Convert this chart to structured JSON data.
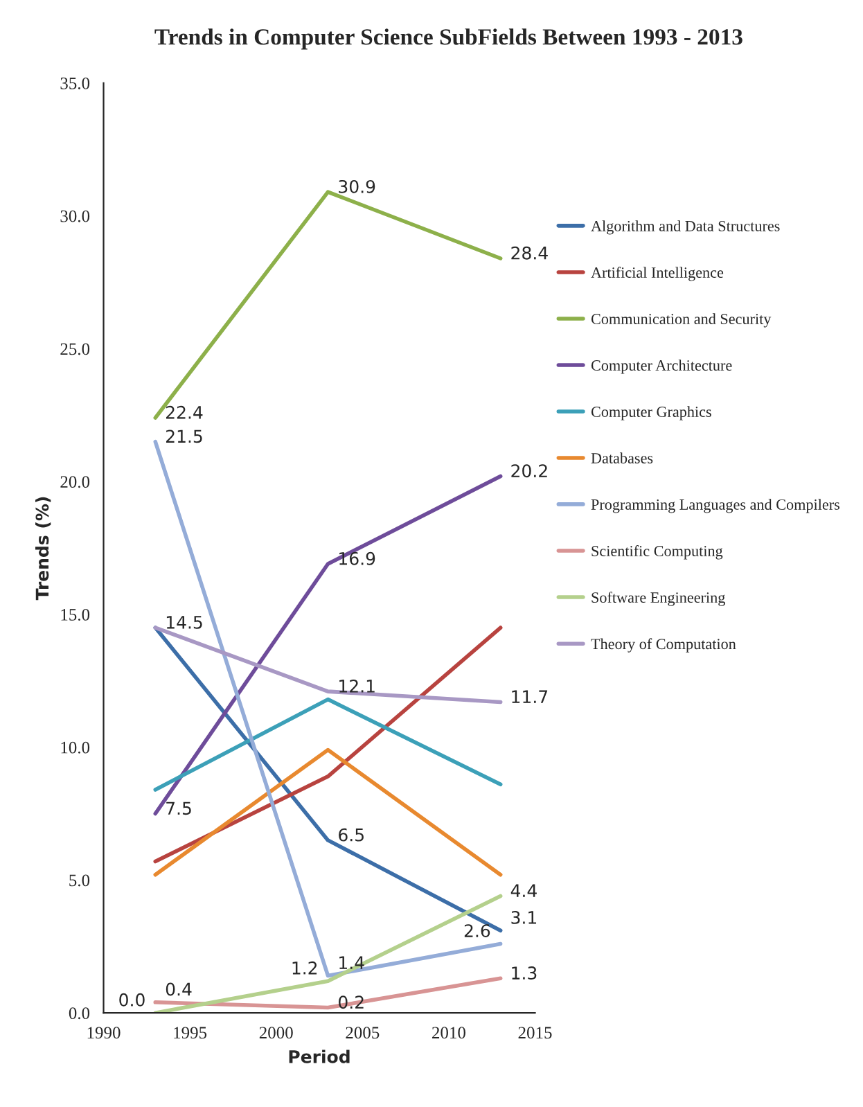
{
  "chart_data": {
    "type": "line",
    "title": "Trends in Computer Science SubFields Between 1993 - 2013",
    "xlabel": "Period",
    "ylabel": "Trends (%)",
    "x": [
      1993,
      2003,
      2013
    ],
    "xlim": [
      1990,
      2015
    ],
    "xticks": [
      1990,
      1995,
      2000,
      2005,
      2010,
      2015
    ],
    "ylim": [
      0,
      35
    ],
    "yticks": [
      {
        "value": 0,
        "label": "0.0"
      },
      {
        "value": 5,
        "label": "5.0"
      },
      {
        "value": 10,
        "label": "10.0"
      },
      {
        "value": 15,
        "label": "15.0"
      },
      {
        "value": 20,
        "label": "20.0"
      },
      {
        "value": 25,
        "label": "25.0"
      },
      {
        "value": 30,
        "label": "30.0"
      },
      {
        "value": 35,
        "label": "35.0"
      }
    ],
    "grid": false,
    "legend": "right",
    "marker": "none",
    "line_style": "solid",
    "series": [
      {
        "name": "Algorithm and Data Structures",
        "color": "#3c6ea8",
        "values": [
          14.5,
          6.5,
          3.1
        ],
        "value_labels": [
          null,
          "6.5",
          "3.1"
        ]
      },
      {
        "name": "Artificial Intelligence",
        "color": "#b8433f",
        "values": [
          5.7,
          8.9,
          14.5
        ],
        "value_labels": [
          null,
          null,
          null
        ]
      },
      {
        "name": "Communication and Security",
        "color": "#8db04a",
        "values": [
          22.4,
          30.9,
          28.4
        ],
        "value_labels": [
          "22.4",
          "30.9",
          "28.4"
        ]
      },
      {
        "name": "Computer Architecture",
        "color": "#6e4c9a",
        "values": [
          7.5,
          16.9,
          20.2
        ],
        "value_labels": [
          "7.5",
          "16.9",
          "20.2"
        ]
      },
      {
        "name": "Computer Graphics",
        "color": "#3ca0b8",
        "values": [
          8.4,
          11.8,
          8.6
        ],
        "value_labels": [
          null,
          null,
          null
        ]
      },
      {
        "name": "Databases",
        "color": "#e8892f",
        "values": [
          5.2,
          9.9,
          5.2
        ],
        "value_labels": [
          null,
          null,
          null
        ]
      },
      {
        "name": "Programming Languages and Compilers",
        "color": "#94acd8",
        "values": [
          21.5,
          1.4,
          2.6
        ],
        "value_labels": [
          "21.5",
          "1.4",
          "2.6"
        ]
      },
      {
        "name": "Scientific Computing",
        "color": "#d89494",
        "values": [
          0.4,
          0.2,
          1.3
        ],
        "value_labels": [
          "0.4",
          "0.2",
          "1.3"
        ]
      },
      {
        "name": "Software Engineering",
        "color": "#b4d08c",
        "values": [
          0.0,
          1.2,
          4.4
        ],
        "value_labels": [
          "0.0",
          "1.2",
          "4.4"
        ]
      },
      {
        "name": "Theory of Computation",
        "color": "#a898c4",
        "values": [
          14.5,
          12.1,
          11.7
        ],
        "value_labels": [
          "14.5",
          "12.1",
          "11.7"
        ]
      }
    ]
  }
}
